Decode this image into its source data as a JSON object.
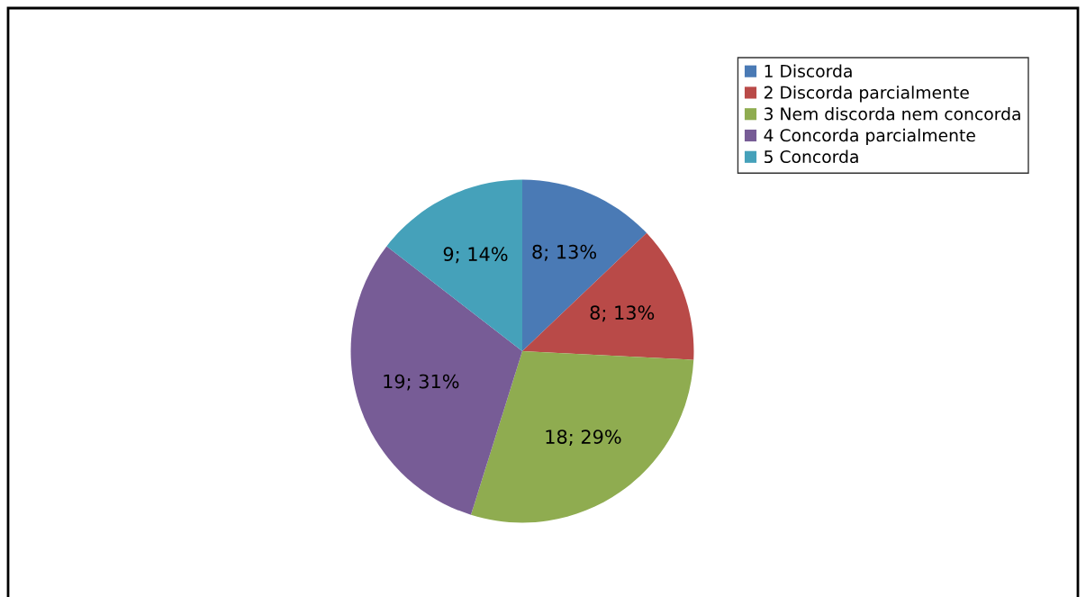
{
  "chart_data": {
    "type": "pie",
    "categories": [
      "1 Discorda",
      "2 Discorda parcialmente",
      "3 Nem discorda nem concorda",
      "4 Concorda parcialmente",
      "5 Concorda"
    ],
    "values": [
      8,
      8,
      18,
      19,
      9
    ],
    "colors": [
      "#4a7ab5",
      "#b94a48",
      "#8fac50",
      "#775c96",
      "#45a1ba"
    ],
    "value_labels": [
      "8; 13%",
      "8; 13%",
      "18; 29%",
      "19; 31%",
      "9; 14%"
    ],
    "legend": "top right"
  }
}
